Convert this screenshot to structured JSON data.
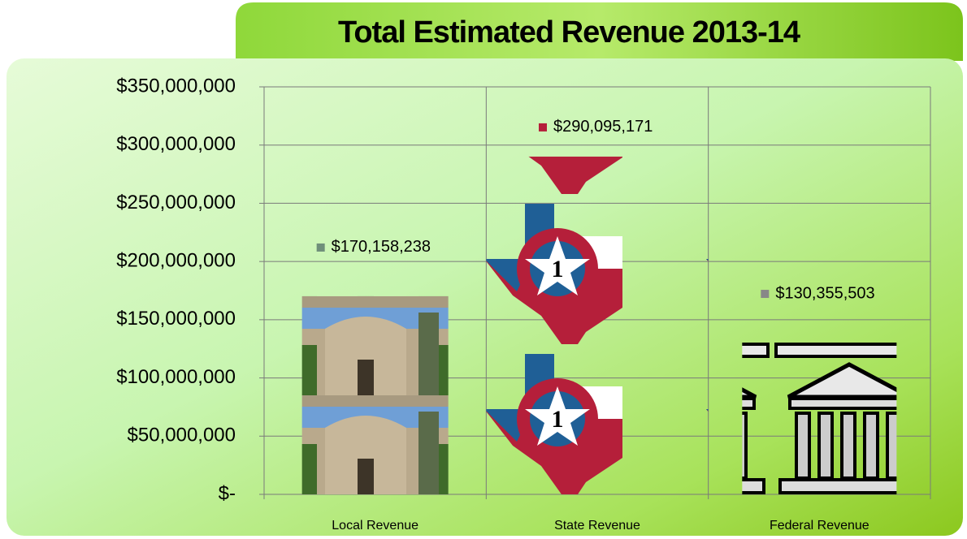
{
  "chart_data": {
    "type": "bar",
    "title": "Total Estimated Revenue 2013-14",
    "categories": [
      "Local Revenue",
      "State Revenue",
      "Federal Revenue"
    ],
    "values": [
      170158238,
      290095171,
      130355503
    ],
    "value_labels": [
      "$170,158,238",
      "$290,095,171",
      "$130,355,503"
    ],
    "ylim": [
      0,
      350000000
    ],
    "yticks": [
      {
        "value": 0,
        "label": "$-"
      },
      {
        "value": 50000000,
        "label": "$50,000,000"
      },
      {
        "value": 100000000,
        "label": "$100,000,000"
      },
      {
        "value": 150000000,
        "label": "$150,000,000"
      },
      {
        "value": 200000000,
        "label": "$200,000,000"
      },
      {
        "value": 250000000,
        "label": "$250,000,000"
      },
      {
        "value": 300000000,
        "label": "$300,000,000"
      },
      {
        "value": 350000000,
        "label": "$350,000,000"
      }
    ],
    "grid": true
  }
}
